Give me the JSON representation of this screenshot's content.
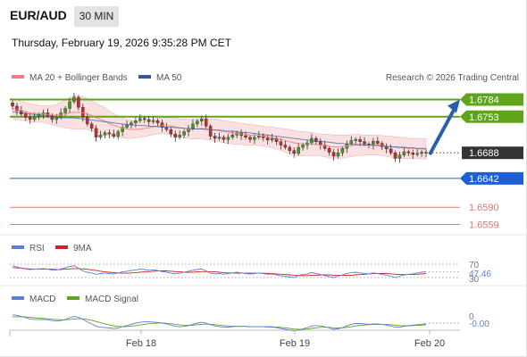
{
  "header": {
    "pair": "EUR/AUD",
    "timeframe": "30 MIN",
    "datetime": "Thursday, February 19, 2026 9:35:28 PM CET"
  },
  "credit": "Research © 2026 Trading Central",
  "colors": {
    "resistance": "#5ea51a",
    "support_pivot": "#1f5fd6",
    "support": "#e27575",
    "price_box": "#333333",
    "arrow": "#2a5ea8",
    "bollinger": "#f6c9c9",
    "ma20": "#f08080",
    "ma50": "#34579a",
    "rsi": "#5b7fd6",
    "rsi_ma": "#d42020",
    "macd": "#5b7fd6",
    "macd_signal": "#5ea51a"
  },
  "chart_data": [
    {
      "type": "candlestick",
      "title": "EUR/AUD",
      "legend": [
        "MA 20 + Bollinger Bands",
        "MA 50"
      ],
      "x_ticks": [
        "Feb 18",
        "Feb 19",
        "Feb 20"
      ],
      "current_price": 1.6688,
      "levels": [
        {
          "label": "1.6784",
          "value": 1.6784,
          "kind": "resistance"
        },
        {
          "label": "1.6753",
          "value": 1.6753,
          "kind": "resistance"
        },
        {
          "label": "1.6688",
          "value": 1.6688,
          "kind": "price"
        },
        {
          "label": "1.6642",
          "value": 1.6642,
          "kind": "pivot"
        },
        {
          "label": "1.6590",
          "value": 1.659,
          "kind": "support"
        },
        {
          "label": "1.6559",
          "value": 1.6559,
          "kind": "support"
        }
      ],
      "closes": [
        1.6772,
        1.6764,
        1.6758,
        1.6752,
        1.6748,
        1.6753,
        1.6757,
        1.676,
        1.6755,
        1.6748,
        1.6752,
        1.676,
        1.6768,
        1.678,
        1.6788,
        1.677,
        1.6752,
        1.674,
        1.6732,
        1.6716,
        1.672,
        1.6724,
        1.6722,
        1.6718,
        1.6726,
        1.6734,
        1.6738,
        1.6742,
        1.6746,
        1.675,
        1.6748,
        1.6744,
        1.6746,
        1.6742,
        1.6734,
        1.673,
        1.6722,
        1.6716,
        1.672,
        1.6726,
        1.6732,
        1.674,
        1.6745,
        1.6749,
        1.6736,
        1.6718,
        1.6714,
        1.6716,
        1.6712,
        1.6716,
        1.672,
        1.6724,
        1.6719,
        1.6716,
        1.6712,
        1.6716,
        1.6719,
        1.6715,
        1.6711,
        1.6714,
        1.6708,
        1.6702,
        1.6698,
        1.6692,
        1.6687,
        1.6698,
        1.6702,
        1.6706,
        1.6714,
        1.6708,
        1.6702,
        1.6696,
        1.6689,
        1.6682,
        1.6688,
        1.6696,
        1.6704,
        1.671,
        1.6712,
        1.6708,
        1.6704,
        1.6702,
        1.6709,
        1.6705,
        1.6699,
        1.6695,
        1.6688,
        1.6678,
        1.6684,
        1.669,
        1.6688,
        1.6685,
        1.6687,
        1.6689,
        1.6688
      ],
      "ma20": [
        1.6768,
        1.6766,
        1.6764,
        1.6762,
        1.676,
        1.6759,
        1.6758,
        1.6758,
        1.6757,
        1.6756,
        1.6756,
        1.6757,
        1.6758,
        1.676,
        1.6761,
        1.6761,
        1.676,
        1.6758,
        1.6755,
        1.6751,
        1.6748,
        1.6745,
        1.6741,
        1.6738,
        1.6735,
        1.6733,
        1.6731,
        1.673,
        1.673,
        1.6731,
        1.6732,
        1.6733,
        1.6735,
        1.6736,
        1.6737,
        1.6737,
        1.6736,
        1.6735,
        1.6733,
        1.6732,
        1.6731,
        1.6731,
        1.6731,
        1.6732,
        1.6731,
        1.673,
        1.6729,
        1.6728,
        1.6726,
        1.6725,
        1.6724,
        1.6723,
        1.6722,
        1.6721,
        1.672,
        1.672,
        1.6719,
        1.6718,
        1.6717,
        1.6716,
        1.6714,
        1.6712,
        1.671,
        1.6708,
        1.6706,
        1.6705,
        1.6704,
        1.6704,
        1.6704,
        1.6703,
        1.6702,
        1.6701,
        1.67,
        1.6699,
        1.6699,
        1.6699,
        1.67,
        1.6701,
        1.6702,
        1.6702,
        1.6702,
        1.6702,
        1.6702,
        1.6702,
        1.6701,
        1.67,
        1.6699,
        1.6698,
        1.6697,
        1.6697,
        1.6696,
        1.6696,
        1.6696,
        1.6695,
        1.6695
      ],
      "ma50": [
        1.6762,
        1.6761,
        1.676,
        1.6759,
        1.6758,
        1.6757,
        1.6756,
        1.6755,
        1.6754,
        1.6753,
        1.6752,
        1.6751,
        1.6751,
        1.6751,
        1.6751,
        1.675,
        1.6749,
        1.6748,
        1.6747,
        1.6746,
        1.6745,
        1.6744,
        1.6743,
        1.6742,
        1.6741,
        1.674,
        1.6739,
        1.6738,
        1.6738,
        1.6737,
        1.6737,
        1.6736,
        1.6736,
        1.6735,
        1.6735,
        1.6734,
        1.6734,
        1.6733,
        1.6733,
        1.6732,
        1.6732,
        1.6731,
        1.6731,
        1.6731,
        1.673,
        1.673,
        1.6729,
        1.6729,
        1.6728,
        1.6727,
        1.6727,
        1.6726,
        1.6725,
        1.6724,
        1.6724,
        1.6723,
        1.6722,
        1.6721,
        1.672,
        1.6719,
        1.6718,
        1.6717,
        1.6716,
        1.6715,
        1.6714,
        1.6713,
        1.6712,
        1.6711,
        1.671,
        1.6709,
        1.6709,
        1.6708,
        1.6707,
        1.6706,
        1.6705,
        1.6705,
        1.6704,
        1.6704,
        1.6703,
        1.6703,
        1.6702,
        1.6702,
        1.6701,
        1.6701,
        1.67,
        1.67,
        1.6699,
        1.6699,
        1.6698,
        1.6698,
        1.6697,
        1.6697,
        1.6696,
        1.6696,
        1.6696
      ],
      "band_half_width": [
        0.0018,
        0.0018,
        0.0017,
        0.0017,
        0.0016,
        0.0016,
        0.0015,
        0.0015,
        0.0016,
        0.0017,
        0.0019,
        0.0022,
        0.0025,
        0.0028,
        0.003,
        0.003,
        0.0029,
        0.0028,
        0.0027,
        0.0026,
        0.0025,
        0.0024,
        0.0022,
        0.0021,
        0.0019,
        0.0018,
        0.0017,
        0.0016,
        0.0015,
        0.0015,
        0.0015,
        0.0014,
        0.0014,
        0.0014,
        0.0014,
        0.0015,
        0.0015,
        0.0016,
        0.0016,
        0.0017,
        0.0017,
        0.0018,
        0.0018,
        0.0018,
        0.0019,
        0.0019,
        0.002,
        0.002,
        0.002,
        0.002,
        0.002,
        0.002,
        0.0019,
        0.0019,
        0.0019,
        0.0018,
        0.0018,
        0.0018,
        0.0018,
        0.0019,
        0.0019,
        0.002,
        0.0021,
        0.0022,
        0.0022,
        0.0022,
        0.0022,
        0.0021,
        0.0021,
        0.002,
        0.002,
        0.002,
        0.0021,
        0.0021,
        0.0021,
        0.0021,
        0.002,
        0.002,
        0.0019,
        0.0019,
        0.0018,
        0.0018,
        0.0018,
        0.0018,
        0.0018,
        0.0018,
        0.0019,
        0.0019,
        0.0019,
        0.0019,
        0.0018,
        0.0018,
        0.0018,
        0.0018,
        0.0018
      ],
      "forecast": {
        "from": 1.6688,
        "to": 1.6784
      }
    },
    {
      "type": "line",
      "title": "RSI",
      "legend": [
        "RSI",
        "9MA"
      ],
      "y_ticks": [
        70,
        30
      ],
      "current_value_label": "47.46",
      "rsi": [
        66,
        62,
        58,
        56,
        54,
        55,
        56,
        57,
        55,
        52,
        53,
        56,
        59,
        63,
        65,
        58,
        50,
        46,
        44,
        40,
        42,
        43,
        42,
        41,
        44,
        47,
        49,
        51,
        53,
        55,
        54,
        52,
        53,
        51,
        48,
        46,
        43,
        41,
        43,
        46,
        49,
        52,
        54,
        56,
        50,
        43,
        41,
        42,
        40,
        42,
        44,
        46,
        44,
        42,
        41,
        42,
        44,
        42,
        40,
        41,
        38,
        35,
        34,
        32,
        30,
        36,
        39,
        41,
        45,
        42,
        39,
        36,
        33,
        30,
        34,
        38,
        42,
        45,
        46,
        44,
        42,
        41,
        44,
        42,
        39,
        37,
        34,
        30,
        34,
        38,
        40,
        41,
        44,
        46,
        47.46
      ],
      "ma9": [
        60,
        59,
        58,
        57,
        56,
        55,
        55,
        55,
        55,
        55,
        54,
        54,
        55,
        56,
        57,
        57,
        56,
        55,
        53,
        51,
        49,
        47,
        46,
        45,
        44,
        43,
        43,
        44,
        45,
        46,
        47,
        48,
        49,
        50,
        50,
        50,
        49,
        48,
        47,
        46,
        46,
        46,
        47,
        48,
        48,
        48,
        47,
        46,
        45,
        44,
        44,
        43,
        43,
        43,
        43,
        43,
        43,
        43,
        42,
        42,
        41,
        40,
        39,
        38,
        37,
        36,
        36,
        36,
        37,
        37,
        38,
        38,
        38,
        37,
        37,
        37,
        37,
        37,
        38,
        39,
        40,
        41,
        42,
        42,
        42,
        42,
        41,
        40,
        39,
        39,
        39,
        39,
        40,
        41,
        42
      ]
    },
    {
      "type": "line",
      "title": "MACD",
      "legend": [
        "MACD",
        "MACD Signal"
      ],
      "y_ticks": [
        0
      ],
      "current_value_label": "-0.00",
      "macd": [
        0.4,
        0.38,
        0.32,
        0.26,
        0.2,
        0.18,
        0.17,
        0.18,
        0.16,
        0.12,
        0.1,
        0.12,
        0.18,
        0.26,
        0.32,
        0.28,
        0.18,
        0.06,
        -0.04,
        -0.16,
        -0.2,
        -0.22,
        -0.24,
        -0.26,
        -0.24,
        -0.18,
        -0.12,
        -0.06,
        0.0,
        0.04,
        0.06,
        0.06,
        0.05,
        0.03,
        0.0,
        -0.04,
        -0.1,
        -0.16,
        -0.18,
        -0.16,
        -0.12,
        -0.06,
        0.0,
        0.04,
        0.0,
        -0.08,
        -0.14,
        -0.18,
        -0.2,
        -0.2,
        -0.18,
        -0.16,
        -0.16,
        -0.16,
        -0.18,
        -0.18,
        -0.17,
        -0.18,
        -0.2,
        -0.2,
        -0.22,
        -0.26,
        -0.3,
        -0.34,
        -0.38,
        -0.34,
        -0.28,
        -0.22,
        -0.14,
        -0.12,
        -0.14,
        -0.18,
        -0.24,
        -0.3,
        -0.28,
        -0.22,
        -0.14,
        -0.06,
        -0.02,
        -0.02,
        -0.04,
        -0.06,
        -0.04,
        -0.04,
        -0.06,
        -0.1,
        -0.14,
        -0.2,
        -0.2,
        -0.16,
        -0.12,
        -0.1,
        -0.08,
        -0.06,
        -0.02
      ],
      "signal": [
        0.3,
        0.31,
        0.31,
        0.3,
        0.28,
        0.26,
        0.24,
        0.23,
        0.21,
        0.19,
        0.17,
        0.16,
        0.16,
        0.18,
        0.2,
        0.21,
        0.21,
        0.18,
        0.14,
        0.08,
        0.02,
        -0.04,
        -0.09,
        -0.13,
        -0.16,
        -0.17,
        -0.17,
        -0.15,
        -0.12,
        -0.09,
        -0.06,
        -0.03,
        -0.01,
        0.0,
        0.0,
        -0.01,
        -0.03,
        -0.06,
        -0.09,
        -0.1,
        -0.11,
        -0.1,
        -0.08,
        -0.06,
        -0.05,
        -0.06,
        -0.08,
        -0.1,
        -0.12,
        -0.14,
        -0.15,
        -0.16,
        -0.16,
        -0.16,
        -0.17,
        -0.17,
        -0.17,
        -0.17,
        -0.18,
        -0.18,
        -0.19,
        -0.21,
        -0.23,
        -0.26,
        -0.29,
        -0.3,
        -0.3,
        -0.29,
        -0.26,
        -0.23,
        -0.21,
        -0.2,
        -0.21,
        -0.23,
        -0.24,
        -0.23,
        -0.21,
        -0.18,
        -0.14,
        -0.11,
        -0.09,
        -0.08,
        -0.07,
        -0.06,
        -0.06,
        -0.07,
        -0.08,
        -0.1,
        -0.12,
        -0.13,
        -0.13,
        -0.12,
        -0.11,
        -0.1,
        -0.08
      ]
    }
  ]
}
